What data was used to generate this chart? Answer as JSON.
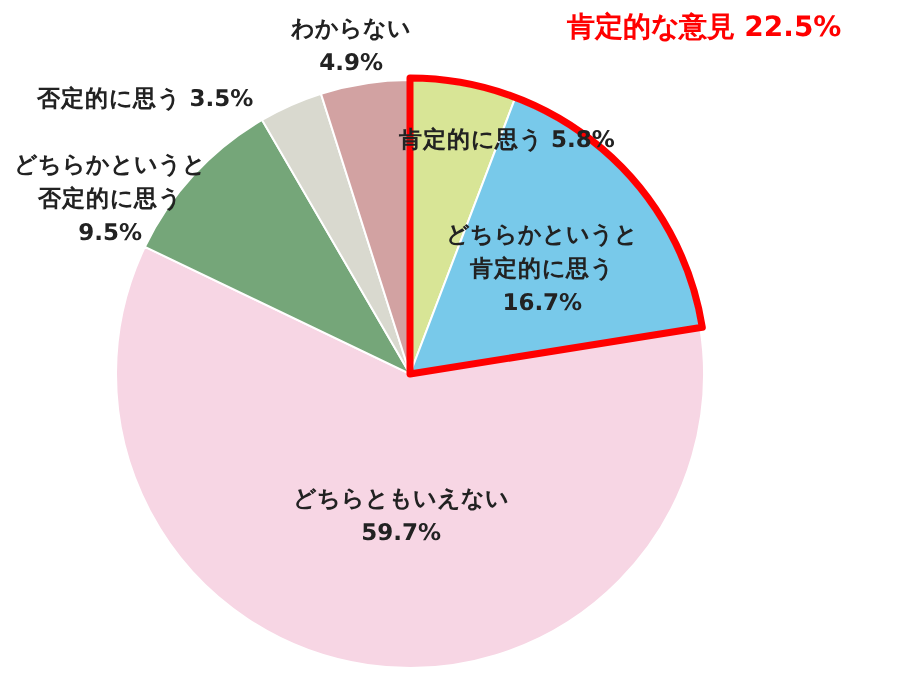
{
  "chart_data": {
    "type": "pie",
    "categories": [
      "肯定的に思う",
      "どちらかというと肯定的に思う",
      "どちらともいえない",
      "どちらかというと否定的に思う",
      "否定的に思う",
      "わからない"
    ],
    "values": [
      5.8,
      16.7,
      59.7,
      9.5,
      3.5,
      4.9
    ],
    "value_labels": [
      "5.8%",
      "16.7%",
      "59.7%",
      "9.5%",
      "3.5%",
      "4.9%"
    ],
    "colors": [
      "#d8e596",
      "#78c9ea",
      "#f7d6e4",
      "#75a679",
      "#d9d9cf",
      "#d2a2a2"
    ],
    "annotations": [
      "肯定的な意見 22.5%"
    ],
    "legend": false
  }
}
